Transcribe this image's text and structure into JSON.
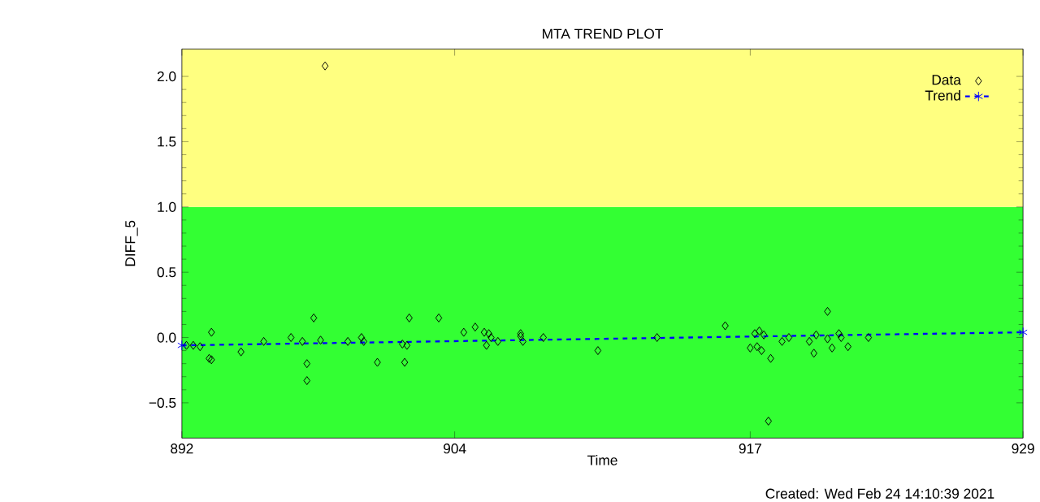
{
  "chart_data": {
    "type": "scatter",
    "title": "MTA TREND PLOT",
    "xlabel": "Time",
    "ylabel": "DIFF_5",
    "annotations": [
      "Created: Wed Feb 24 14:10:39 2021"
    ],
    "xlim": [
      892,
      929
    ],
    "xticks": [
      892,
      904,
      917,
      929
    ],
    "ylim": [
      -0.77,
      2.21
    ],
    "yticks": [
      {
        "value": -0.5,
        "label": "−0.5"
      },
      {
        "value": 0,
        "label": "0.0"
      },
      {
        "value": 0.5,
        "label": "0.5"
      },
      {
        "value": 1.0,
        "label": "1.0"
      },
      {
        "value": 1.5,
        "label": "1.5"
      },
      {
        "value": 2.0,
        "label": "2.0"
      }
    ],
    "bands": [
      {
        "axis": "y",
        "from": -0.77,
        "to": 1.0,
        "color": "#33ff33"
      },
      {
        "axis": "y",
        "from": 1.0,
        "to": 2.21,
        "color": "#ffff80"
      }
    ],
    "legend": "top right",
    "series": [
      {
        "name": "Data",
        "marker": "diamond",
        "color": "#000000",
        "x": [
          892.2,
          892.5,
          892.8,
          893.3,
          893.2,
          893.3,
          894.6,
          895.6,
          896.8,
          897.3,
          897.8,
          897.5,
          897.5,
          898.1,
          898.3,
          899.3,
          899.9,
          900.0,
          900.6,
          901.7,
          901.8,
          901.9,
          902.0,
          903.3,
          904.4,
          904.9,
          905.3,
          905.4,
          905.5,
          905.6,
          905.9,
          906.9,
          907.0,
          906.9,
          907.9,
          910.3,
          912.9,
          915.9,
          917.2,
          917.4,
          917.6,
          917.3,
          917.5,
          917.0,
          917.9,
          917.8,
          918.4,
          918.7,
          919.6,
          919.8,
          919.9,
          920.4,
          920.4,
          920.6,
          920.9,
          921.0,
          921.3,
          922.2
        ],
        "values": [
          -0.06,
          -0.06,
          -0.07,
          0.04,
          -0.16,
          -0.17,
          -0.11,
          -0.03,
          0.0,
          -0.03,
          0.15,
          -0.2,
          -0.33,
          -0.02,
          2.08,
          -0.03,
          0.0,
          -0.03,
          -0.19,
          -0.05,
          -0.19,
          -0.06,
          0.15,
          0.15,
          0.04,
          0.08,
          0.04,
          -0.06,
          0.03,
          0.0,
          -0.03,
          0.01,
          -0.03,
          0.03,
          0.0,
          -0.1,
          0.0,
          0.09,
          0.03,
          0.05,
          0.02,
          -0.07,
          -0.1,
          -0.08,
          -0.16,
          -0.64,
          -0.03,
          0.0,
          -0.03,
          -0.12,
          0.02,
          0.2,
          -0.01,
          -0.08,
          0.03,
          0.0,
          -0.07,
          0.0
        ]
      },
      {
        "name": "Trend",
        "type": "line",
        "marker": "cross",
        "line_style": "dashed",
        "color": "#0000ff",
        "x": [
          892,
          929
        ],
        "values": [
          -0.06,
          0.04
        ]
      }
    ]
  }
}
